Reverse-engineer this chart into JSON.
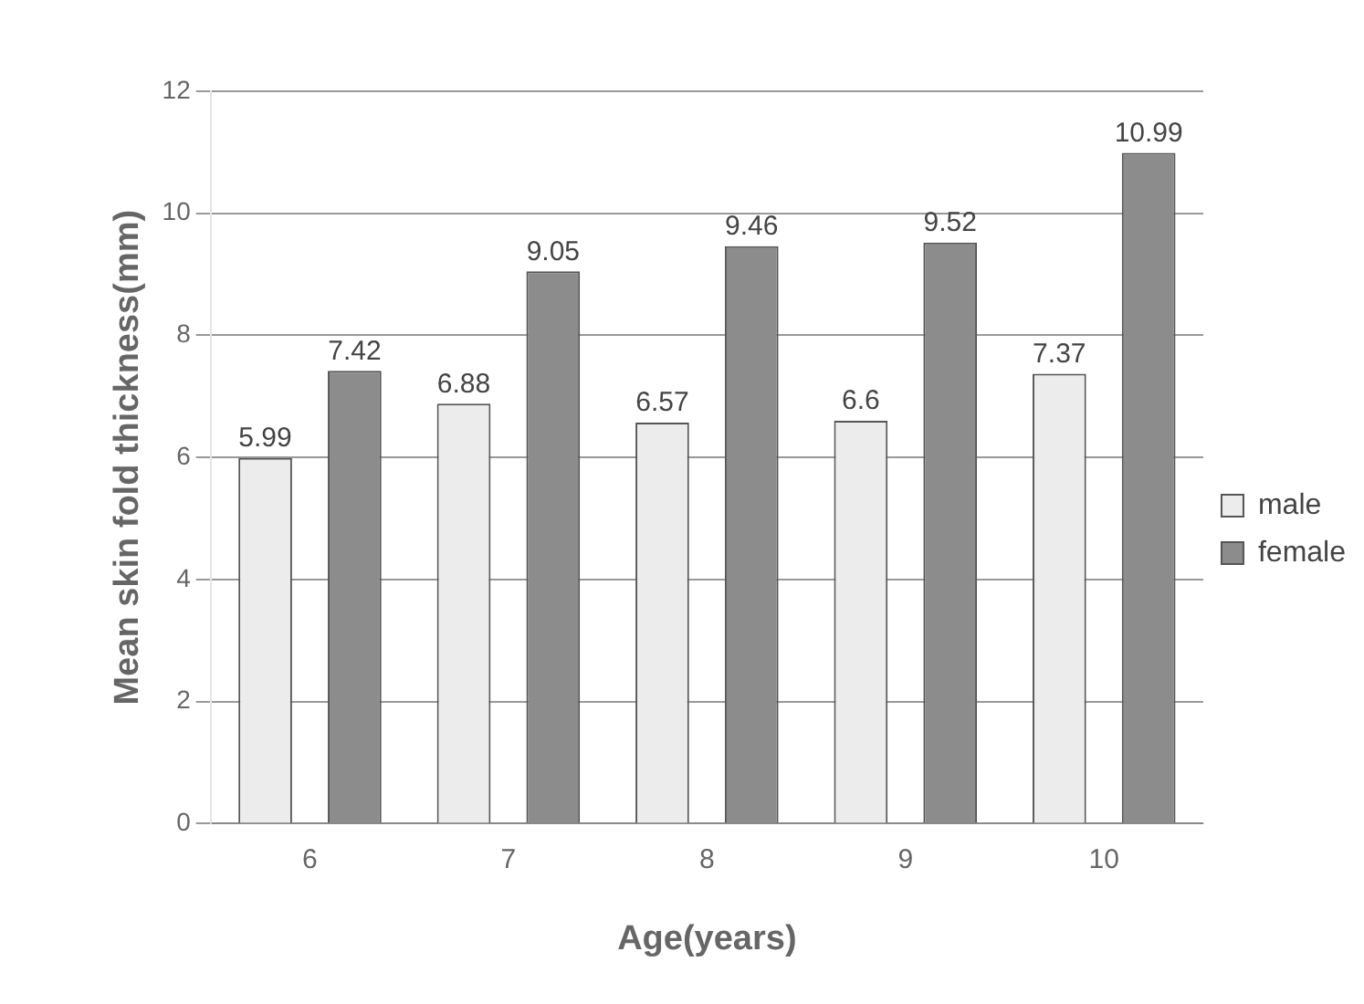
{
  "chart_data": {
    "type": "bar",
    "xlabel": "Age(years)",
    "ylabel": "Mean skin fold thickness(mm)",
    "categories": [
      "6",
      "7",
      "8",
      "9",
      "10"
    ],
    "series": [
      {
        "name": "male",
        "color": "#ececec",
        "values": [
          5.99,
          6.88,
          6.57,
          6.6,
          7.37
        ]
      },
      {
        "name": "female",
        "color": "#8c8c8c",
        "values": [
          7.42,
          9.05,
          9.46,
          9.52,
          10.99
        ]
      }
    ],
    "ylim": [
      0,
      12
    ],
    "yticks": [
      0,
      2,
      4,
      6,
      8,
      10,
      12
    ],
    "grid": "y",
    "legend": "right",
    "data_labels": true
  }
}
